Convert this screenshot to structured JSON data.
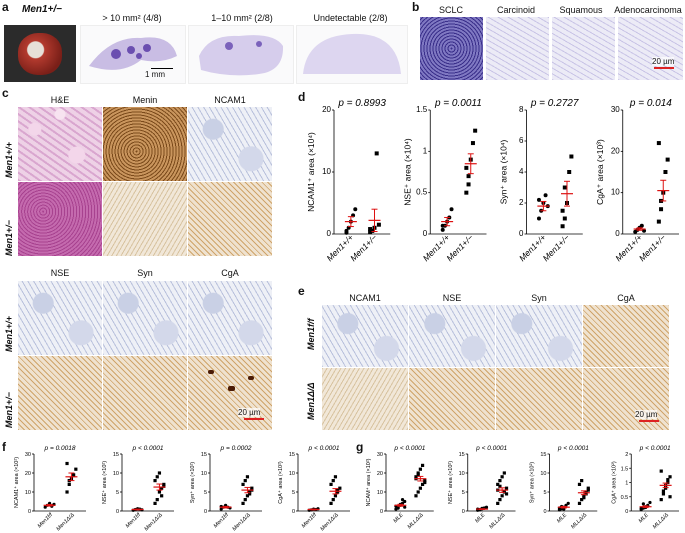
{
  "panel_a": {
    "label": "a",
    "genotype": "Men1+/−",
    "headers": [
      "> 10 mm² (4/8)",
      "1–10 mm² (2/8)",
      "Undetectable (2/8)"
    ],
    "scalebar": "1 mm"
  },
  "panel_b": {
    "label": "b",
    "headers": [
      "SCLC",
      "Carcinoid",
      "Squamous",
      "Adenocarcinoma"
    ],
    "scalebar": "20 µm"
  },
  "panel_c": {
    "label": "c",
    "headers_top": [
      "H&E",
      "Menin",
      "NCAM1"
    ],
    "headers_bottom": [
      "NSE",
      "Syn",
      "CgA"
    ],
    "rows": [
      "Men1+/+",
      "Men1+/−"
    ],
    "scalebar": "20 µm"
  },
  "panel_d": {
    "label": "d",
    "chart_data": [
      {
        "type": "scatter",
        "ylabel": "NCAM1⁺ area (×10⁴)",
        "pvalue": "p = 0.8993",
        "ylim": [
          0,
          20
        ],
        "yticks": [
          0,
          10,
          20
        ],
        "categories": [
          "Men1+/+",
          "Men1+/−"
        ],
        "series": [
          {
            "values": [
              0.5,
              1,
              2,
              3,
              4,
              0.2
            ]
          },
          {
            "values": [
              0.3,
              0.5,
              1,
              13,
              1.5,
              0.8
            ]
          }
        ],
        "means": [
          2.0,
          2.2
        ],
        "sem": [
          0.8,
          1.8
        ]
      },
      {
        "type": "scatter",
        "ylabel": "NSE⁺ area (×10⁴)",
        "pvalue": "p = 0.0011",
        "ylim": [
          0,
          1.5
        ],
        "yticks": [
          0,
          0.5,
          1.0,
          1.5
        ],
        "categories": [
          "Men1+/+",
          "Men1+/−"
        ],
        "series": [
          {
            "values": [
              0.05,
              0.1,
              0.15,
              0.2,
              0.3,
              0.1
            ]
          },
          {
            "values": [
              0.5,
              0.7,
              0.9,
              1.1,
              1.25,
              0.8,
              0.6
            ]
          }
        ],
        "means": [
          0.15,
          0.85
        ],
        "sem": [
          0.05,
          0.12
        ]
      },
      {
        "type": "scatter",
        "ylabel": "Syn⁺ area (×10⁴)",
        "pvalue": "p = 0.2727",
        "ylim": [
          0,
          8
        ],
        "yticks": [
          0,
          2,
          4,
          6,
          8
        ],
        "categories": [
          "Men1+/+",
          "Men1+/−"
        ],
        "series": [
          {
            "values": [
              1,
              1.5,
              2,
              2.5,
              1.8,
              2.2
            ]
          },
          {
            "values": [
              0.5,
              1,
              2,
              4,
              5,
              1.5,
              3
            ]
          }
        ],
        "means": [
          1.8,
          2.6
        ],
        "sem": [
          0.3,
          0.8
        ]
      },
      {
        "type": "scatter",
        "ylabel": "CgA⁺ area (×10³)",
        "pvalue": "p = 0.014",
        "ylim": [
          0,
          30
        ],
        "yticks": [
          0,
          10,
          20,
          30
        ],
        "categories": [
          "Men1+/+",
          "Men1+/−"
        ],
        "series": [
          {
            "values": [
              0.5,
              1,
              1.5,
              2,
              0.8
            ]
          },
          {
            "values": [
              3,
              6,
              10,
              15,
              18,
              22,
              8
            ]
          }
        ],
        "means": [
          1.2,
          10.5
        ],
        "sem": [
          0.3,
          2.5
        ]
      }
    ]
  },
  "panel_e": {
    "label": "e",
    "headers": [
      "NCAM1",
      "NSE",
      "Syn",
      "CgA"
    ],
    "rows": [
      "Men1f/f",
      "Men1Δ/Δ"
    ],
    "scalebar": "20 µm"
  },
  "panel_f": {
    "label": "f",
    "chart_data": [
      {
        "type": "scatter",
        "ylabel": "NCAM1⁺ area (×10²)",
        "pvalue": "p = 0.0018",
        "ylim": [
          0,
          30
        ],
        "yticks": [
          0,
          10,
          20,
          30
        ],
        "categories": [
          "Men1f/f",
          "Men1Δ/Δ"
        ],
        "series": [
          {
            "values": [
              2,
              3,
              4,
              2.5,
              3.5
            ]
          },
          {
            "values": [
              10,
              14,
              17,
              19,
              22,
              25,
              16
            ]
          }
        ],
        "means": [
          3,
          18
        ],
        "sem": [
          0.4,
          2
        ]
      },
      {
        "type": "scatter",
        "ylabel": "NSE⁺ area (×10²)",
        "pvalue": "p < 0.0001",
        "ylim": [
          0,
          15
        ],
        "yticks": [
          0,
          5,
          10,
          15
        ],
        "categories": [
          "Men1f/f",
          "Men1Δ/Δ"
        ],
        "series": [
          {
            "values": [
              0.2,
              0.4,
              0.6,
              0.5,
              0.3
            ]
          },
          {
            "values": [
              2,
              3,
              5,
              6,
              7,
              8,
              9,
              10,
              4,
              6.5
            ]
          }
        ],
        "means": [
          0.4,
          6.3
        ],
        "sem": [
          0.1,
          0.8
        ]
      },
      {
        "type": "scatter",
        "ylabel": "Syn⁺ area (×10²)",
        "pvalue": "p = 0.0002",
        "ylim": [
          0,
          15
        ],
        "yticks": [
          0,
          5,
          10,
          15
        ],
        "categories": [
          "Men1f/f",
          "Men1Δ/Δ"
        ],
        "series": [
          {
            "values": [
              0.5,
              1,
              1.5,
              1,
              0.8,
              1.2
            ]
          },
          {
            "values": [
              2,
              3,
              4,
              5,
              6,
              7,
              8,
              9,
              4.5,
              5.5
            ]
          }
        ],
        "means": [
          1,
          5.5
        ],
        "sem": [
          0.2,
          0.7
        ]
      },
      {
        "type": "scatter",
        "ylabel": "CgA⁺ area (×10²)",
        "pvalue": "p < 0.0001",
        "ylim": [
          0,
          15
        ],
        "yticks": [
          0,
          5,
          10,
          15
        ],
        "categories": [
          "Men1f/f",
          "Men1Δ/Δ"
        ],
        "series": [
          {
            "values": [
              0.2,
              0.3,
              0.5,
              0.4,
              0.6
            ]
          },
          {
            "values": [
              2,
              3,
              4,
              5,
              6,
              7,
              8,
              9,
              5.5
            ]
          }
        ],
        "means": [
          0.4,
          5.2
        ],
        "sem": [
          0.1,
          0.7
        ]
      }
    ]
  },
  "panel_g": {
    "label": "g",
    "chart_data": [
      {
        "type": "scatter",
        "ylabel": "NCAM⁺ area (×10²)",
        "pvalue": "p < 0.0001",
        "ylim": [
          0,
          30
        ],
        "yticks": [
          0,
          10,
          20,
          30
        ],
        "categories": [
          "MLE",
          "MLLΔ/Δ"
        ],
        "series": [
          {
            "values": [
              1,
              2,
              3,
              4,
              5,
              2.5,
              1.5,
              3.5,
              6,
              2
            ]
          },
          {
            "values": [
              8,
              10,
              12,
              14,
              16,
              18,
              20,
              22,
              24,
              15,
              17,
              19
            ]
          }
        ],
        "means": [
          3,
          17
        ],
        "sem": [
          0.5,
          1.2
        ]
      },
      {
        "type": "scatter",
        "ylabel": "NSE⁺ area (×10²)",
        "pvalue": "p < 0.0001",
        "ylim": [
          0,
          15
        ],
        "yticks": [
          0,
          5,
          10,
          15
        ],
        "categories": [
          "MLE",
          "MLLΔ/Δ"
        ],
        "series": [
          {
            "values": [
              0.2,
              0.4,
              0.6,
              0.8,
              1,
              0.5,
              0.3,
              0.7
            ]
          },
          {
            "values": [
              2,
              3,
              4,
              5,
              6,
              7,
              8,
              9,
              10,
              4.5,
              5.5,
              6.5
            ]
          }
        ],
        "means": [
          0.5,
          5.5
        ],
        "sem": [
          0.1,
          0.6
        ]
      },
      {
        "type": "scatter",
        "ylabel": "Syn⁺ area (×10²)",
        "pvalue": "p < 0.0001",
        "ylim": [
          0,
          15
        ],
        "yticks": [
          0,
          5,
          10,
          15
        ],
        "categories": [
          "MLE",
          "MLLΔ/Δ"
        ],
        "series": [
          {
            "values": [
              0.3,
              0.6,
              1,
              1.5,
              2,
              0.8,
              1.2,
              0.5
            ]
          },
          {
            "values": [
              2,
              3,
              4,
              5,
              6,
              7,
              8,
              3.5,
              4.5,
              5.5
            ]
          }
        ],
        "means": [
          1,
          4.8
        ],
        "sem": [
          0.2,
          0.5
        ]
      },
      {
        "type": "scatter",
        "ylabel": "CgA⁺ area (×10²)",
        "pvalue": "p < 0.0001",
        "ylim": [
          0,
          2
        ],
        "yticks": [
          0,
          0.5,
          1.0,
          1.5,
          2.0
        ],
        "categories": [
          "MLE",
          "MLLΔ/Δ"
        ],
        "series": [
          {
            "values": [
              0.05,
              0.1,
              0.15,
              0.2,
              0.3,
              0.1,
              0.25,
              0.12
            ]
          },
          {
            "values": [
              0.4,
              0.6,
              0.8,
              1.0,
              1.2,
              1.4,
              0.7,
              0.9,
              1.1,
              0.5
            ]
          }
        ],
        "means": [
          0.15,
          0.9
        ],
        "sem": [
          0.03,
          0.08
        ]
      }
    ]
  }
}
